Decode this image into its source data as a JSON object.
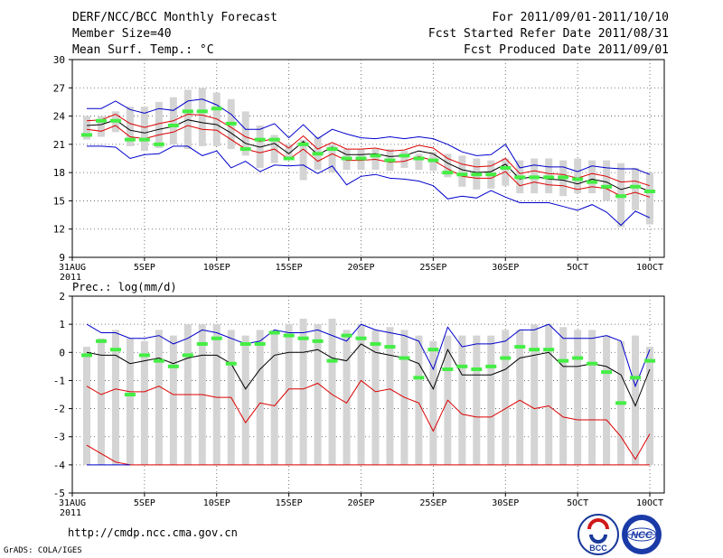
{
  "header": {
    "title": "DERF/NCC/BCC Monthly Forecast",
    "member": "Member Size=40",
    "variable": "Mean Surf. Temp.: °C",
    "period": "For 2011/09/01-2011/10/10",
    "started": "Fcst Started Refer Date 2011/08/31",
    "produced": "Fcst Produced Date 2011/09/01"
  },
  "footer": {
    "url": "http://cmdp.ncc.cma.gov.cn",
    "grads": "GrADS: COLA/IGES"
  },
  "logos": {
    "bcc_text": "BCC",
    "ncc_text": "NCC"
  },
  "x_ticks": [
    {
      "day": 0,
      "label": "31AUG",
      "sub": "2011"
    },
    {
      "day": 5,
      "label": "5SEP"
    },
    {
      "day": 10,
      "label": "10SEP"
    },
    {
      "day": 15,
      "label": "15SEP"
    },
    {
      "day": 20,
      "label": "20SEP"
    },
    {
      "day": 25,
      "label": "25SEP"
    },
    {
      "day": 30,
      "label": "30SEP"
    },
    {
      "day": 35,
      "label": "5OCT"
    },
    {
      "day": 40,
      "label": "10OCT"
    }
  ],
  "colors": {
    "blue": "#0000cc",
    "red": "#dd0000",
    "black": "#000000",
    "green": "#44ee44",
    "box": "#d4d4d4",
    "grid": "#555555"
  },
  "chart_data": [
    {
      "type": "box",
      "name": "temperature",
      "ylabel": "Mean Surf. Temp.: °C",
      "ylim": [
        9,
        30
      ],
      "yticks": [
        9,
        12,
        15,
        18,
        21,
        24,
        27,
        30
      ],
      "x": [
        1,
        2,
        3,
        4,
        5,
        6,
        7,
        8,
        9,
        10,
        11,
        12,
        13,
        14,
        15,
        16,
        17,
        18,
        19,
        20,
        21,
        22,
        23,
        24,
        25,
        26,
        27,
        28,
        29,
        30,
        31,
        32,
        33,
        34,
        35,
        36,
        37,
        38,
        39,
        40
      ],
      "box_low": [
        21.5,
        21.8,
        22.3,
        20.8,
        20.3,
        20.6,
        21.0,
        20.5,
        20.8,
        20.8,
        20.5,
        19.8,
        18.5,
        19.0,
        19.5,
        17.2,
        18.3,
        18.0,
        18.3,
        18.3,
        18.3,
        18.2,
        18.5,
        18.3,
        18.2,
        17.5,
        16.5,
        16.2,
        16.3,
        16.6,
        15.8,
        15.8,
        15.8,
        15.5,
        15.8,
        15.8,
        15.0,
        12.2,
        14.0,
        12.5
      ],
      "box_high": [
        24.0,
        24.0,
        24.5,
        25.0,
        25.0,
        25.5,
        26.0,
        26.8,
        27.0,
        26.5,
        25.8,
        24.5,
        23.0,
        22.0,
        21.0,
        21.5,
        21.8,
        21.0,
        20.5,
        20.5,
        20.5,
        20.5,
        20.3,
        20.0,
        20.2,
        20.0,
        19.8,
        19.5,
        19.3,
        19.5,
        19.3,
        19.5,
        19.5,
        19.3,
        19.5,
        19.3,
        19.3,
        19.0,
        18.5,
        18.0
      ],
      "observed": [
        22.0,
        23.5,
        23.5,
        21.5,
        21.5,
        21.0,
        23.0,
        24.5,
        24.5,
        24.8,
        23.2,
        20.5,
        21.5,
        21.5,
        19.5,
        21.0,
        20.0,
        20.5,
        19.5,
        19.5,
        19.8,
        19.3,
        19.8,
        19.5,
        19.3,
        18.0,
        17.8,
        17.8,
        17.8,
        18.5,
        17.5,
        17.5,
        17.5,
        17.5,
        17.3,
        17.0,
        16.5,
        15.5,
        16.5,
        16.0
      ],
      "max": [
        24.8,
        24.8,
        25.6,
        24.7,
        24.3,
        24.8,
        24.6,
        25.6,
        25.8,
        25.2,
        24.2,
        22.6,
        22.6,
        23.2,
        21.7,
        23.1,
        21.6,
        22.6,
        22.1,
        21.7,
        21.6,
        21.8,
        21.6,
        21.8,
        21.6,
        21.0,
        20.2,
        19.8,
        19.9,
        21.0,
        18.5,
        18.8,
        18.6,
        18.6,
        18.1,
        18.7,
        18.5,
        18.4,
        18.4,
        17.8
      ],
      "upper": [
        23.5,
        23.6,
        24.2,
        23.2,
        22.8,
        23.2,
        23.5,
        24.2,
        24.1,
        23.7,
        22.8,
        21.8,
        21.3,
        21.6,
        20.6,
        21.9,
        20.5,
        21.2,
        20.5,
        20.5,
        20.6,
        20.3,
        20.4,
        20.9,
        20.6,
        19.5,
        18.9,
        18.6,
        18.7,
        19.5,
        17.9,
        18.2,
        17.9,
        17.8,
        17.4,
        17.9,
        17.6,
        17.0,
        17.1,
        16.6
      ],
      "mean": [
        23.0,
        23.1,
        23.6,
        22.5,
        22.2,
        22.6,
        22.9,
        23.6,
        23.3,
        23.1,
        22.2,
        21.1,
        20.7,
        21.1,
        20.0,
        21.3,
        19.9,
        20.7,
        19.9,
        19.9,
        20.0,
        19.7,
        19.8,
        20.3,
        20.0,
        19.0,
        18.3,
        18.0,
        18.1,
        18.9,
        17.3,
        17.6,
        17.3,
        17.2,
        16.8,
        17.3,
        17.0,
        16.2,
        16.6,
        16.0
      ],
      "lower": [
        22.6,
        22.4,
        23.0,
        21.8,
        21.6,
        22.0,
        22.3,
        23.0,
        22.6,
        22.5,
        21.5,
        20.5,
        20.1,
        20.5,
        19.4,
        20.5,
        19.2,
        20.0,
        19.3,
        19.3,
        19.4,
        19.1,
        19.2,
        19.7,
        19.3,
        18.4,
        17.6,
        17.4,
        17.4,
        18.1,
        16.6,
        17.0,
        16.7,
        16.6,
        16.2,
        16.5,
        16.3,
        15.5,
        15.9,
        15.4
      ],
      "min": [
        20.8,
        20.8,
        20.7,
        19.5,
        19.9,
        20.0,
        20.8,
        20.8,
        19.8,
        20.3,
        18.5,
        19.2,
        18.1,
        18.8,
        18.7,
        18.8,
        17.9,
        18.7,
        16.7,
        17.6,
        17.8,
        17.4,
        17.3,
        17.1,
        16.6,
        15.2,
        15.5,
        15.3,
        16.1,
        15.4,
        14.8,
        14.8,
        14.8,
        14.4,
        14.0,
        14.6,
        13.8,
        12.4,
        13.9,
        13.2
      ]
    },
    {
      "type": "box",
      "name": "precipitation",
      "ylabel": "Prec.: log(mm/d)",
      "ylim": [
        -5,
        2
      ],
      "yticks": [
        -5,
        -4,
        -3,
        -2,
        -1,
        0,
        1,
        2
      ],
      "x": [
        1,
        2,
        3,
        4,
        5,
        6,
        7,
        8,
        9,
        10,
        11,
        12,
        13,
        14,
        15,
        16,
        17,
        18,
        19,
        20,
        21,
        22,
        23,
        24,
        25,
        26,
        27,
        28,
        29,
        30,
        31,
        32,
        33,
        34,
        35,
        36,
        37,
        38,
        39,
        40
      ],
      "box_low": [
        -4,
        -4,
        -4,
        -4,
        -4,
        -4,
        -4,
        -4,
        -4,
        -4,
        -4,
        -4,
        -4,
        -4,
        -4,
        -4,
        -4,
        -4,
        -4,
        -4,
        -4,
        -4,
        -4,
        -4,
        -4,
        -4,
        -4,
        -4,
        -4,
        -4,
        -4,
        -4,
        -4,
        -4,
        -4,
        -4,
        -4,
        -4,
        -4,
        -4
      ],
      "box_high": [
        0.2,
        0.5,
        0.8,
        0.5,
        0.4,
        0.8,
        0.6,
        1.0,
        1.0,
        1.0,
        0.8,
        0.6,
        0.8,
        0.8,
        1.0,
        1.2,
        1.0,
        1.2,
        0.8,
        1.0,
        0.8,
        0.9,
        0.8,
        0.6,
        0.4,
        0.6,
        0.6,
        0.6,
        0.6,
        0.8,
        0.8,
        1.0,
        1.0,
        0.9,
        0.8,
        0.8,
        0.6,
        0.4,
        0.6,
        0.2
      ],
      "observed": [
        -0.1,
        0.4,
        0.1,
        -1.5,
        -0.1,
        -0.3,
        -0.5,
        -0.1,
        0.3,
        0.5,
        -0.4,
        0.3,
        0.3,
        0.7,
        0.6,
        0.5,
        0.4,
        -0.3,
        0.6,
        0.5,
        0.3,
        0.2,
        -0.2,
        -0.9,
        0.1,
        -0.6,
        -0.5,
        -0.6,
        -0.5,
        -0.2,
        0.2,
        0.1,
        0.1,
        -0.3,
        -0.2,
        -0.4,
        -0.7,
        -1.8,
        -0.9,
        -0.3
      ],
      "max": [
        1.0,
        0.7,
        0.7,
        0.5,
        0.5,
        0.6,
        0.3,
        0.5,
        0.8,
        0.7,
        0.5,
        0.3,
        0.4,
        0.8,
        0.7,
        0.7,
        0.8,
        0.6,
        0.4,
        1.0,
        0.8,
        0.7,
        0.6,
        0.4,
        -0.6,
        0.9,
        0.2,
        0.3,
        0.3,
        0.4,
        0.8,
        0.8,
        1.0,
        0.5,
        0.5,
        0.5,
        0.6,
        0.4,
        -1.2,
        0.1
      ],
      "upper": [
        0.5,
        0.2,
        0.2,
        0.0,
        0.1,
        0.2,
        0.0,
        0.1,
        0.3,
        0.3,
        0.0,
        -0.3,
        0.0,
        0.3,
        0.4,
        0.4,
        0.4,
        0.2,
        0.1,
        0.7,
        0.4,
        0.3,
        0.2,
        0.0,
        -0.9,
        0.5,
        -0.3,
        -0.2,
        -0.2,
        0.0,
        0.4,
        0.4,
        0.5,
        0.0,
        0.0,
        0.0,
        0.0,
        -0.3,
        -1.6,
        -0.4
      ],
      "mean": [
        0.0,
        -0.1,
        -0.1,
        -0.4,
        -0.3,
        -0.2,
        -0.4,
        -0.2,
        -0.1,
        -0.1,
        -0.4,
        -1.3,
        -0.6,
        -0.1,
        0.0,
        0.0,
        0.1,
        -0.2,
        -0.3,
        0.3,
        0.0,
        -0.1,
        -0.2,
        -0.4,
        -1.3,
        0.1,
        -0.8,
        -0.8,
        -0.8,
        -0.6,
        -0.2,
        -0.1,
        0.0,
        -0.5,
        -0.5,
        -0.4,
        -0.5,
        -0.8,
        -1.9,
        -0.6
      ],
      "lower": [
        -0.5,
        -0.5,
        -0.6,
        -0.8,
        -0.7,
        -0.6,
        -0.8,
        -0.6,
        -0.5,
        -0.5,
        -0.9,
        -1.6,
        -1.0,
        -0.5,
        -0.4,
        -0.4,
        -0.3,
        -0.7,
        -0.7,
        -0.1,
        -0.4,
        -0.5,
        -0.6,
        -0.8,
        -1.6,
        -0.3,
        -1.2,
        -1.2,
        -1.2,
        -1.0,
        -0.6,
        -0.5,
        -0.4,
        -0.9,
        -0.9,
        -0.8,
        -0.9,
        -1.2,
        -2.2,
        -1.0
      ],
      "min": [
        -1.2,
        -1.5,
        -1.3,
        -1.4,
        -1.4,
        -1.2,
        -1.5,
        -1.5,
        -1.5,
        -1.6,
        -1.6,
        -2.5,
        -1.8,
        -1.9,
        -1.3,
        -1.3,
        -1.1,
        -1.5,
        -1.8,
        -1.0,
        -1.4,
        -1.3,
        -1.6,
        -1.8,
        -2.8,
        -1.7,
        -2.2,
        -2.3,
        -2.3,
        -2.0,
        -1.7,
        -2.0,
        -1.9,
        -2.3,
        -2.4,
        -2.4,
        -2.4,
        -3.0,
        -3.8,
        -2.9
      ],
      "min_series2": [
        -3.3,
        -3.6,
        -3.9,
        -4.0,
        -4.0,
        -4.0,
        -4.0,
        -4.0,
        -4.0,
        -4.0,
        -4.0,
        -4.0,
        -4.0,
        -4.0,
        -4.0,
        -4.0,
        -4.0,
        -4.0,
        -4.0,
        -4.0,
        -4.0,
        -4.0,
        -4.0,
        -4.0,
        -4.0,
        -4.0,
        -4.0,
        -4.0,
        -4.0,
        -4.0,
        -4.0,
        -4.0,
        -4.0,
        -4.0,
        -4.0,
        -4.0,
        -4.0,
        -4.0,
        -4.0,
        -4.0
      ]
    }
  ]
}
